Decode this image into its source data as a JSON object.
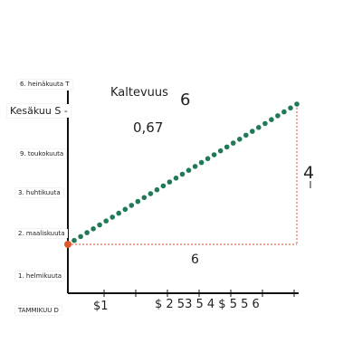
{
  "slope": {
    "label": "Kaltevuus",
    "run_overlay": "6",
    "value": "0,67"
  },
  "triangle": {
    "rise": "4",
    "run": "6"
  },
  "y_axis_labels": [
    "6. heinäkuuta T",
    "Kesäkuu S -",
    "9. toukokuuta",
    "3. huhtikuuta",
    "2. maaliskuuta",
    "1. helmikuuta",
    "TAMMIKUU D"
  ],
  "x_axis_labels": [
    "$1",
    "$ 2 53 5 4 $ 5 5 6"
  ],
  "colors": {
    "dots": "#1f7a55",
    "origin_dot": "#e0582a",
    "triangle_lines": "#e8462a",
    "axis": "#111111"
  },
  "chart_data": {
    "type": "scatter",
    "dots": 37,
    "rise": 4,
    "run": 6,
    "slope": 0.67
  }
}
